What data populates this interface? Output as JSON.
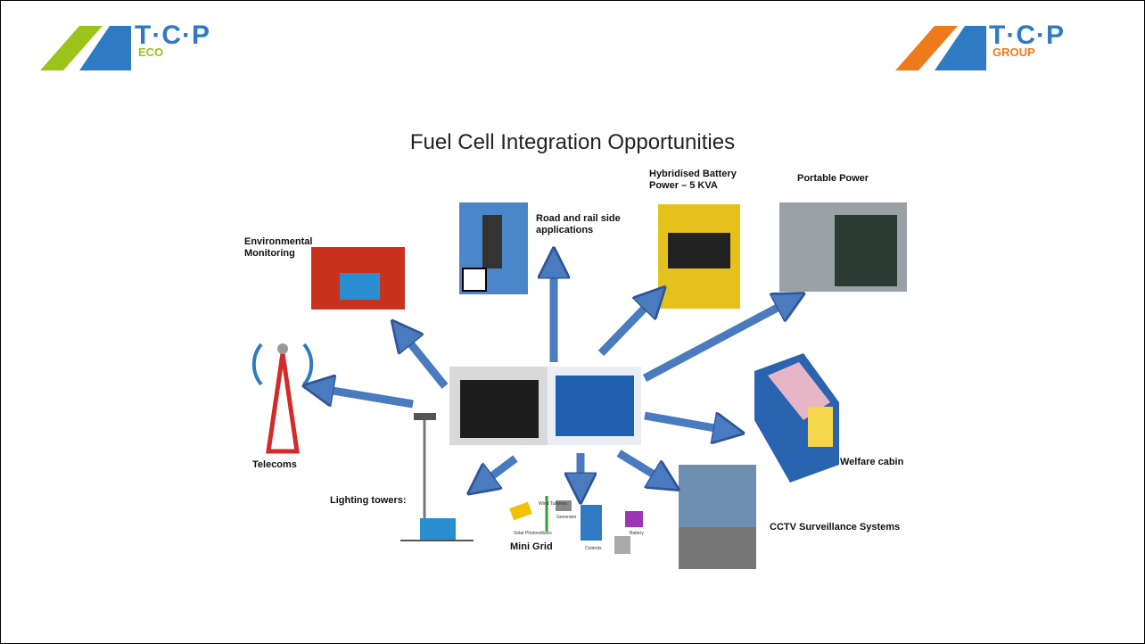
{
  "logos": {
    "left": {
      "mark": "T·C·P",
      "sub": "ECO"
    },
    "right": {
      "mark": "T·C·P",
      "sub": "GROUP"
    }
  },
  "title": "Fuel Cell Integration Opportunities",
  "labels": {
    "environmental": "Environmental Monitoring",
    "road": "Road and rail side applications",
    "hybrid": "Hybridised Battery Power – 5 KVA",
    "portable": "Portable Power",
    "telecoms": "Telecoms",
    "lighting": "Lighting towers:",
    "minigrid": "Mini Grid",
    "cctv": "CCTV Surveillance Systems",
    "welfare": "Welfare cabin"
  },
  "minigrid_parts": [
    "Solar Photovoltaics",
    "Wind Turbines",
    "Generator",
    "Controls",
    "Battery"
  ]
}
